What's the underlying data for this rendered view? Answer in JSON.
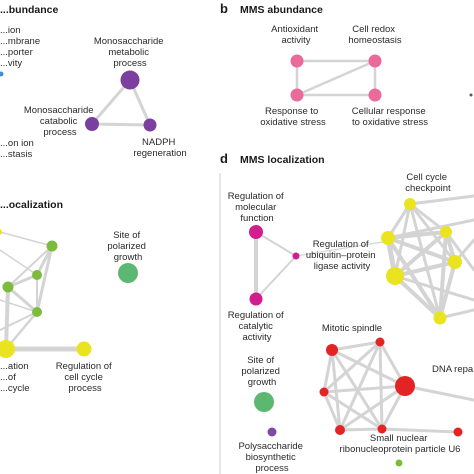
{
  "panels": {
    "a": {
      "title": "...bundance"
    },
    "b": {
      "letter": "b",
      "title": "MMS abundance"
    },
    "c": {
      "title": "...ocalization"
    },
    "d": {
      "letter": "d",
      "title": "MMS localization"
    }
  },
  "colors": {
    "blue": "#3a8fd6",
    "purple": "#7b3fa0",
    "pink": "#ea6a9a",
    "green": "#7dbb3c",
    "light_green": "#5cb871",
    "yellow": "#e9e41f",
    "magenta": "#d11d8e",
    "red": "#e32424",
    "violet": "#7e4aa3",
    "edge": "#d4d4d4"
  },
  "labels": {
    "a_transport": [
      "...ion",
      "...mbrane",
      "...porter",
      "...vity"
    ],
    "a_monometab": [
      "Monosaccharide",
      "metabolic",
      "process"
    ],
    "a_monocat": [
      "Monosaccharide",
      "catabolic",
      "process"
    ],
    "a_nadph": [
      "NADPH",
      "regeneration"
    ],
    "a_ion": [
      "...on ion",
      "...stasis"
    ],
    "b_antiox": [
      "Antioxidant",
      "activity"
    ],
    "b_redox": [
      "Cell redox",
      "homeostasis"
    ],
    "b_resp": [
      "Response to",
      "oxidative stress"
    ],
    "b_cellresp": [
      "Cellular response",
      "to oxidative stress"
    ],
    "c_polar": [
      "Site of",
      "polarized",
      "growth"
    ],
    "c_cyc": [
      "...ation",
      "...of",
      "...cycle"
    ],
    "c_regcyc": [
      "Regulation of",
      "cell cycle",
      "process"
    ],
    "d_molfunc": [
      "Regulation of",
      "molecular",
      "function"
    ],
    "d_ubiq": [
      "Regulation of",
      "ubiquitin–protein",
      "ligase activity"
    ],
    "d_catal": [
      "Regulation of",
      "catalytic",
      "activity"
    ],
    "d_checkpoint": [
      "Cell cycle",
      "checkpoint"
    ],
    "d_spindle": [
      "Mitotic spindle"
    ],
    "d_dnarep": [
      "DNA repa..."
    ],
    "d_polar": [
      "Site of",
      "polarized",
      "growth"
    ],
    "d_polysac": [
      "Polysaccharide",
      "biosynthetic",
      "process"
    ],
    "d_snrnp": [
      "Small nuclear",
      "ribonucleoprotein particle U6"
    ]
  }
}
